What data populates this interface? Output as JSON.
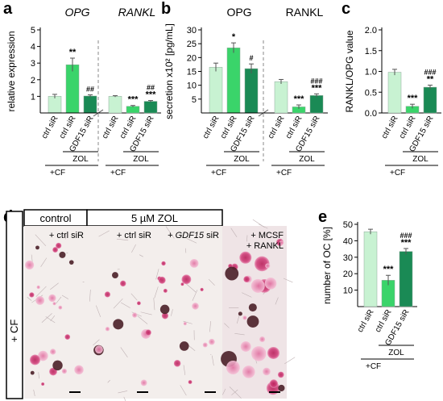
{
  "panel_labels": {
    "a": "a",
    "b": "b",
    "c": "c",
    "d": "d",
    "e": "e"
  },
  "colors": {
    "light": "#c8f2d2",
    "mid": "#3ad46a",
    "dark": "#1a8a55",
    "bar_edge": "#8fa89a"
  },
  "treatment_labels": {
    "zol": "ZOL",
    "cf": "+CF"
  },
  "chart_data": [
    {
      "id": "a",
      "type": "bar",
      "ylabel": "relative expression",
      "ylim": [
        0,
        5
      ],
      "yticks": [
        1,
        2,
        3,
        4,
        5
      ],
      "groups": [
        {
          "title": "OPG",
          "categories": [
            "ctrl siR",
            "ctrl siR",
            "GDF15 siR"
          ],
          "values": [
            1.0,
            2.9,
            1.02
          ],
          "errors": [
            0.12,
            0.4,
            0.07
          ],
          "annotations": [
            "",
            "**",
            "##"
          ]
        },
        {
          "title": "RANKL",
          "categories": [
            "ctrl siR",
            "ctrl siR",
            "GDF15 siR"
          ],
          "values": [
            1.0,
            0.4,
            0.7
          ],
          "errors": [
            0.04,
            0.05,
            0.05
          ],
          "annotations": [
            "",
            "***",
            "##\n***"
          ]
        }
      ],
      "divider": "dashed",
      "bracket_label": "ZOL"
    },
    {
      "id": "b",
      "type": "bar",
      "ylabel": "secretion x10² [pg/mL]",
      "ylim": [
        0,
        30
      ],
      "yticks": [
        5,
        10,
        15,
        20,
        25,
        30
      ],
      "groups": [
        {
          "title": "OPG",
          "categories": [
            "ctrl siR",
            "ctrl siR",
            "GDF15 siR"
          ],
          "values": [
            16.5,
            23.5,
            16.0
          ],
          "errors": [
            1.5,
            1.8,
            1.7
          ],
          "annotations": [
            "",
            "*",
            "#"
          ]
        },
        {
          "title": "RANKL",
          "categories": [
            "ctrl siR",
            "ctrl siR",
            "GDF15 siR"
          ],
          "values": [
            11.3,
            2.2,
            6.3
          ],
          "errors": [
            0.8,
            0.7,
            0.6
          ],
          "annotations": [
            "",
            "***",
            "###\n***"
          ]
        }
      ],
      "divider": "dashed",
      "bracket_label": "ZOL"
    },
    {
      "id": "c",
      "type": "bar",
      "ylabel": "RANKL/OPG value",
      "ylim": [
        0,
        2.0
      ],
      "yticks": [
        0.0,
        0.5,
        1.0,
        1.5,
        2.0
      ],
      "tick_decimals": 1,
      "groups": [
        {
          "title": "",
          "categories": [
            "ctrl siR",
            "ctrl siR",
            "GDF15 siR"
          ],
          "values": [
            0.98,
            0.16,
            0.62
          ],
          "errors": [
            0.07,
            0.05,
            0.05
          ],
          "annotations": [
            "",
            "***",
            "###\n**"
          ]
        }
      ],
      "bracket_label": "ZOL"
    },
    {
      "id": "e",
      "type": "bar",
      "ylabel": "number of OC [%]",
      "ylim": [
        0,
        50
      ],
      "yticks": [
        10,
        20,
        30,
        40,
        50
      ],
      "groups": [
        {
          "title": "",
          "categories": [
            "ctrl siR",
            "ctrl siR",
            "GDF15 siR"
          ],
          "values": [
            45.5,
            16.0,
            33.5
          ],
          "errors": [
            1.5,
            3.0,
            1.8
          ],
          "annotations": [
            "",
            "***",
            "###\n***"
          ]
        }
      ],
      "bracket_label": "ZOL"
    }
  ],
  "micrographs": {
    "header_control": "control",
    "header_zol": "5 µM ZOL",
    "side_label": "+ CF",
    "panels": [
      {
        "label": "+ ctrl siR"
      },
      {
        "label": "+ ctrl siR"
      },
      {
        "label_prefix": "+ ",
        "label_italic": "GDF15",
        "label_suffix": " siR"
      },
      {
        "label_line1": "+ MCSF",
        "label_line2": "+ RANKL"
      }
    ]
  }
}
